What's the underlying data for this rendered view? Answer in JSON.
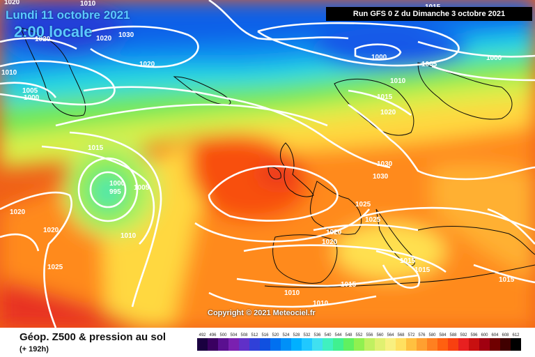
{
  "header": {
    "date": "Lundi 11 octobre 2021",
    "time": "2:00 locale",
    "run": "Run GFS 0 Z du Dimanche 3 octobre 2021"
  },
  "copyright": "Copyright © 2021 Meteociel.fr",
  "legend": {
    "title": "Géop. Z500 & pression au sol",
    "subtitle": "(+ 192h)",
    "scale_values": [
      "492",
      "496",
      "500",
      "504",
      "508",
      "512",
      "516",
      "520",
      "524",
      "528",
      "532",
      "536",
      "540",
      "544",
      "548",
      "552",
      "556",
      "560",
      "564",
      "568",
      "572",
      "576",
      "580",
      "584",
      "588",
      "592",
      "596",
      "600",
      "604",
      "608",
      "612"
    ],
    "scale_colors": [
      "#1a0040",
      "#3a0060",
      "#5a1090",
      "#7a20b0",
      "#6030c8",
      "#3040d8",
      "#1050e0",
      "#0070f0",
      "#0090f8",
      "#00b0ff",
      "#20c8ff",
      "#40e0f0",
      "#40f0c0",
      "#40f090",
      "#60f060",
      "#90f050",
      "#c0f060",
      "#e0f070",
      "#f8f080",
      "#ffe060",
      "#ffc040",
      "#ffa030",
      "#ff8020",
      "#ff6010",
      "#f84010",
      "#e82020",
      "#c81010",
      "#a00010",
      "#700000",
      "#400000",
      "#000000"
    ]
  },
  "isobar_labels": [
    "1020",
    "1010",
    "1020",
    "1020",
    "1030",
    "1005",
    "1000",
    "1010",
    "1020",
    "1015",
    "1000",
    "995",
    "1005",
    "1020",
    "1020",
    "1010",
    "1025",
    "1015",
    "1000",
    "1005",
    "1000",
    "1010",
    "1015",
    "1020",
    "1030",
    "1030",
    "1025",
    "1025",
    "1020",
    "1020",
    "1015",
    "1015",
    "1010",
    "1015",
    "1010",
    "1015"
  ]
}
